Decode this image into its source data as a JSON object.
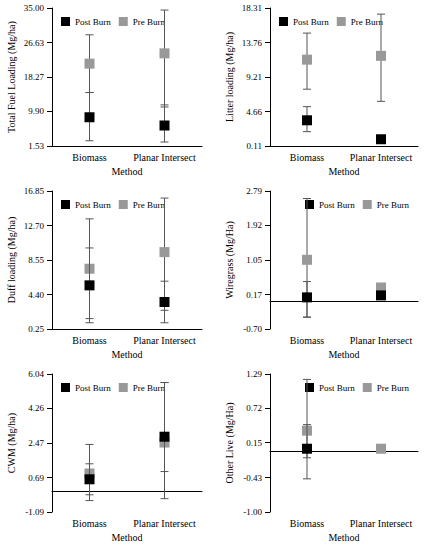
{
  "chart_data": [
    {
      "type": "scatter",
      "ylabel": "Total Fuel Loading (Mg/ha)",
      "xlabel": "Method",
      "categories": [
        "Biomass",
        "Planar Intersect"
      ],
      "series": [
        {
          "name": "Post Burn",
          "color": "#000000",
          "marker": "square",
          "values": [
            8.5,
            6.5
          ],
          "errors": [
            [
              2.8,
              14.5
            ],
            [
              2.5,
              11.5
            ]
          ]
        },
        {
          "name": "Pre Burn",
          "color": "#999999",
          "marker": "square",
          "values": [
            21.5,
            24
          ],
          "errors": [
            [
              14.5,
              28.5
            ],
            [
              11,
              34.5
            ]
          ]
        }
      ],
      "ylim": [
        1.53,
        35
      ],
      "yticks": [
        1.53,
        {
          "value": 9.9,
          "label": "9.90"
        },
        18.27,
        26.63,
        {
          "value": 35,
          "label": "35.00"
        }
      ],
      "legend": "upper left"
    },
    {
      "type": "scatter",
      "ylabel": "Litter loading (Mg/ha)",
      "xlabel": "Method",
      "categories": [
        "Biomass",
        "Planar Intersect"
      ],
      "series": [
        {
          "name": "Post Burn",
          "color": "#000000",
          "marker": "square",
          "values": [
            3.5,
            1.0
          ],
          "errors": [
            [
              2,
              5.3
            ],
            [
              0.6,
              1.4
            ]
          ]
        },
        {
          "name": "Pre Burn",
          "color": "#999999",
          "marker": "square",
          "values": [
            11.5,
            12
          ],
          "errors": [
            [
              7.6,
              15
            ],
            [
              6,
              17.5
            ]
          ]
        }
      ],
      "ylim": [
        0.11,
        18.31
      ],
      "yticks": [
        0.11,
        4.66,
        9.21,
        13.76,
        18.31
      ],
      "legend": "upper left"
    },
    {
      "type": "scatter",
      "ylabel": "Duff loading (Mg/ha)",
      "xlabel": "Method",
      "categories": [
        "Biomass",
        "Planar Intersect"
      ],
      "series": [
        {
          "name": "Post Burn",
          "color": "#000000",
          "marker": "square",
          "values": [
            5.5,
            3.5
          ],
          "errors": [
            [
              1,
              10
            ],
            [
              1,
              6
            ]
          ]
        },
        {
          "name": "Pre Burn",
          "color": "#999999",
          "marker": "square",
          "values": [
            7.5,
            9.5
          ],
          "errors": [
            [
              1.5,
              13.5
            ],
            [
              2.5,
              16
            ]
          ]
        }
      ],
      "ylim": [
        0.25,
        16.85
      ],
      "yticks": [
        0.25,
        {
          "value": 4.4,
          "label": "4.40"
        },
        8.55,
        {
          "value": 12.7,
          "label": "12.70"
        },
        16.85
      ],
      "legend": "upper left"
    },
    {
      "type": "scatter",
      "ylabel": "Wiregrass (Mg/Ha)",
      "xlabel": "Method",
      "categories": [
        "Biomass",
        "Planar Intersect"
      ],
      "series": [
        {
          "name": "Post Burn",
          "color": "#000000",
          "marker": "square",
          "values": [
            0.1,
            0.15
          ],
          "errors": [
            [
              -0.4,
              0.5
            ],
            [
              0.1,
              0.2
            ]
          ]
        },
        {
          "name": "Pre Burn",
          "color": "#999999",
          "marker": "square",
          "values": [
            1.05,
            0.35
          ],
          "errors": [
            [
              -0.4,
              2.6
            ],
            [
              0.2,
              0.45
            ]
          ]
        }
      ],
      "ylim": [
        -0.7,
        2.79
      ],
      "yticks": [
        {
          "value": -0.7,
          "label": "-0.70"
        },
        0.17,
        1.05,
        1.92,
        2.79
      ],
      "legend": "upper right"
    },
    {
      "type": "scatter",
      "ylabel": "CWM (Mg/ha)",
      "xlabel": "Method",
      "categories": [
        "Biomass",
        "Planar Intersect"
      ],
      "series": [
        {
          "name": "Post Burn",
          "color": "#000000",
          "marker": "square",
          "values": [
            0.6,
            2.8
          ],
          "errors": [
            [
              -0.2,
              1.4
            ],
            [
              -0.4,
              5.6
            ]
          ]
        },
        {
          "name": "Pre Burn",
          "color": "#999999",
          "marker": "square",
          "values": [
            0.9,
            2.5
          ],
          "errors": [
            [
              -0.5,
              2.4
            ],
            [
              1,
              5.6
            ]
          ]
        }
      ],
      "ylim": [
        -1.09,
        6.04
      ],
      "yticks": [
        -1.09,
        0.69,
        2.47,
        4.26,
        6.04
      ],
      "legend": "upper left"
    },
    {
      "type": "scatter",
      "ylabel": "Other Live (Mg/Ha)",
      "xlabel": "Method",
      "categories": [
        "Biomass",
        "Planar Intersect"
      ],
      "series": [
        {
          "name": "Post Burn",
          "color": "#000000",
          "marker": "square",
          "values": [
            0.05,
            null
          ],
          "errors": [
            [
              -0.45,
              0.45
            ],
            null
          ]
        },
        {
          "name": "Pre Burn",
          "color": "#999999",
          "marker": "square",
          "values": [
            0.35,
            0.05
          ],
          "errors": [
            [
              -0.1,
              1.2
            ],
            null
          ]
        }
      ],
      "ylim": [
        -1,
        1.29
      ],
      "yticks": [
        {
          "value": -1,
          "label": "-1.00"
        },
        -0.43,
        0.15,
        0.72,
        1.29
      ],
      "legend": "upper right"
    }
  ]
}
